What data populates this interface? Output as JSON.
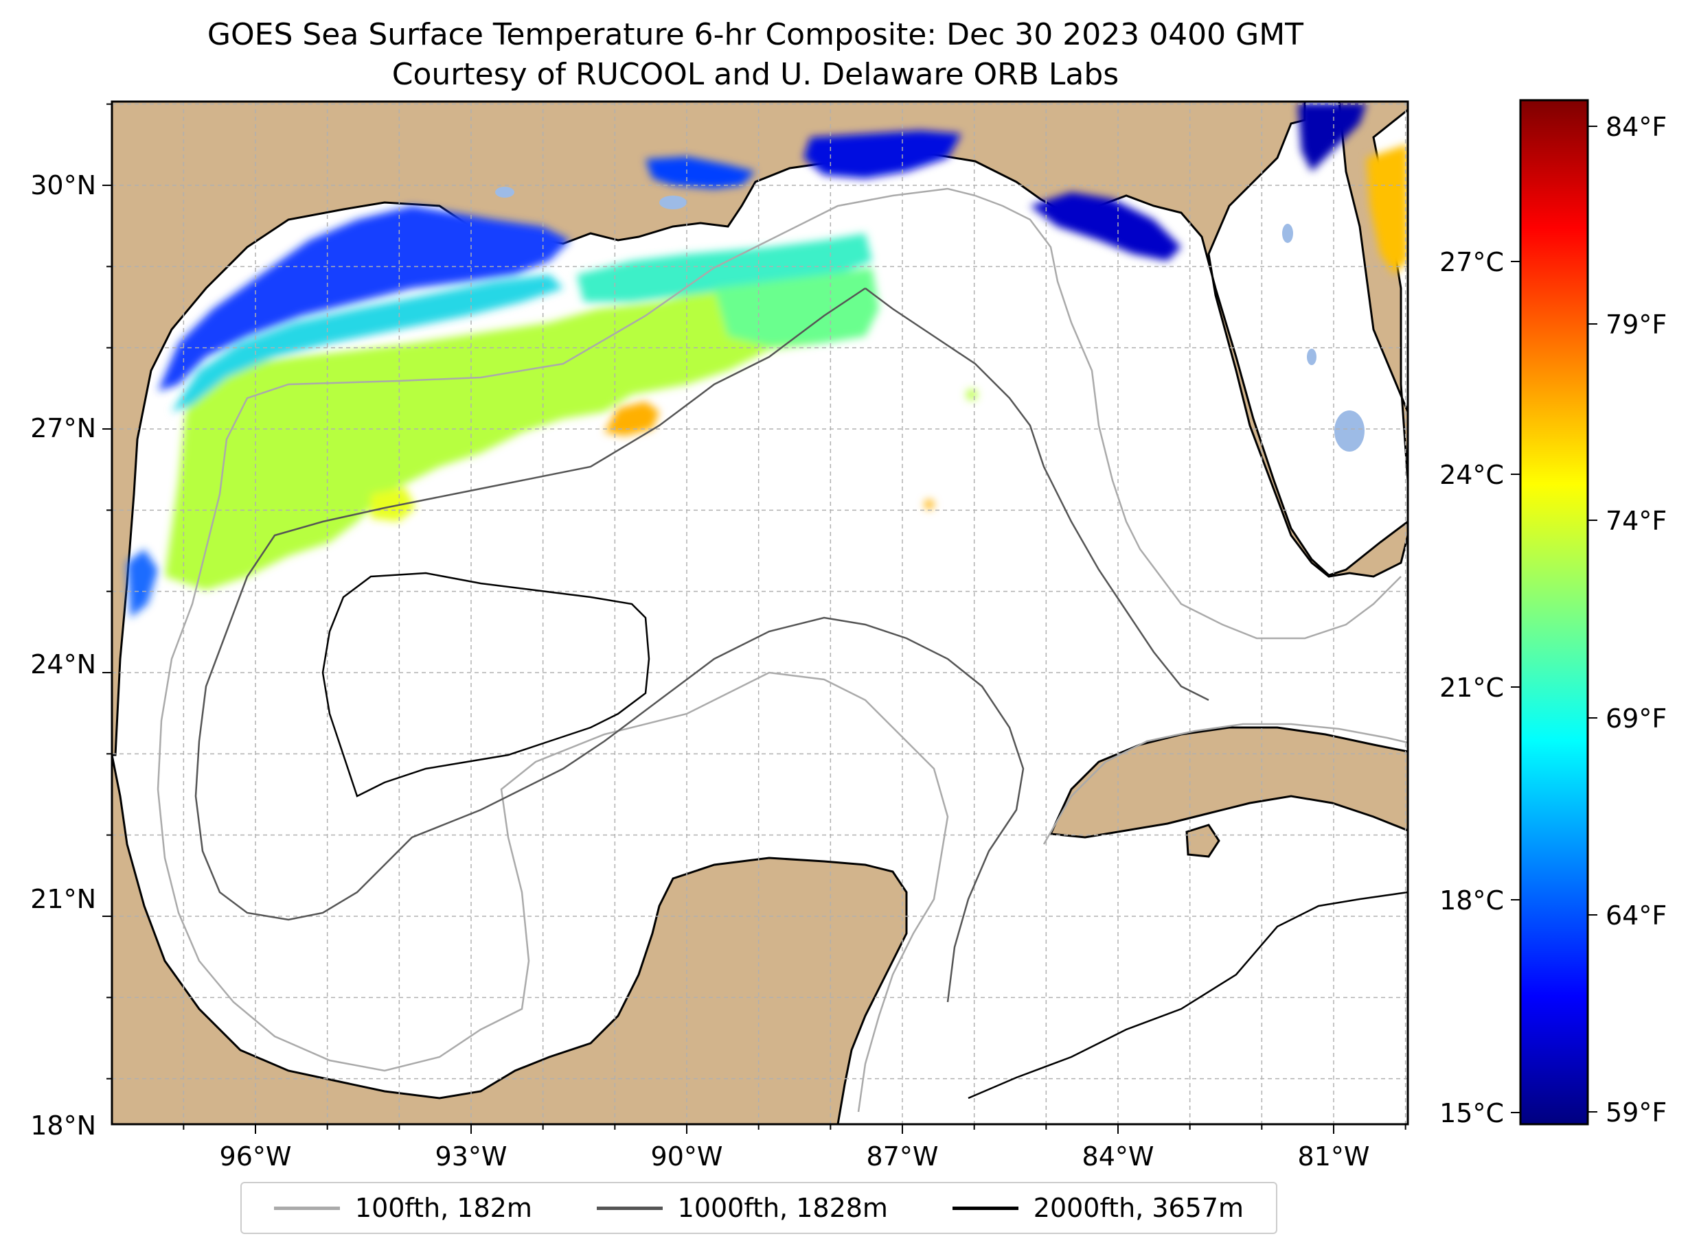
{
  "title": {
    "line1": "GOES Sea Surface Temperature 6-hr Composite: Dec 30 2023 0400 GMT",
    "line2": "Courtesy of RUCOOL and U. Delaware ORB Labs"
  },
  "map": {
    "lat_range": [
      18,
      31
    ],
    "lon_range": [
      -98,
      -80
    ]
  },
  "axes": {
    "y_ticks": [
      "30°N",
      "27°N",
      "24°N",
      "21°N",
      "18°N"
    ],
    "x_ticks": [
      "96°W",
      "93°W",
      "90°W",
      "87°W",
      "84°W",
      "81°W"
    ]
  },
  "colorbar": {
    "celsius_ticks": [
      "27°C",
      "24°C",
      "21°C",
      "18°C",
      "15°C"
    ],
    "fahrenheit_ticks": [
      "84°F",
      "79°F",
      "74°F",
      "69°F",
      "64°F",
      "59°F"
    ],
    "colormap": "jet"
  },
  "legend": {
    "items": [
      {
        "label": "100fth, 182m",
        "color": "#aaaaaa"
      },
      {
        "label": "1000fth, 1828m",
        "color": "#555555"
      },
      {
        "label": "2000fth, 3657m",
        "color": "#000000"
      }
    ]
  },
  "colors": {
    "land": "#d2b48c",
    "lake": "#9dbbe6",
    "grid": "#b0b0b0"
  }
}
